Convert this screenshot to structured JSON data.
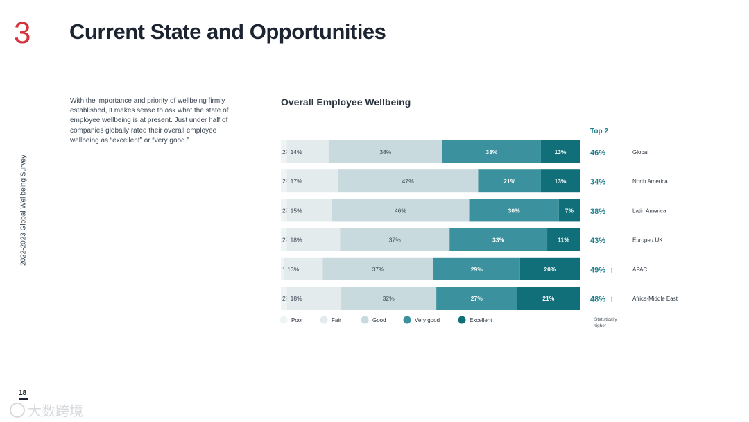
{
  "page": {
    "section_number": "3",
    "title": "Current State and Opportunities",
    "side_label": "2022-2023 Global Wellbeing Survey",
    "intro": "With the importance and priority of wellbeing firmly established, it makes sense to ask what the state of employee wellbeing is at present. Just under half of companies globally rated their overall employee wellbeing as “excellent” or “very good.”",
    "page_number": "18",
    "watermark": "大数跨境"
  },
  "chart_data": {
    "type": "bar",
    "orientation": "horizontal",
    "stacked": true,
    "title": "Overall Employee Wellbeing",
    "categories": [
      "Global",
      "North America",
      "Latin America",
      "Europe / UK",
      "APAC",
      "Africa-Middle East"
    ],
    "series": [
      {
        "name": "Poor",
        "color": "#eef3f4",
        "values": [
          2,
          2,
          2,
          2,
          1,
          2
        ],
        "labels": [
          "2%",
          "2%",
          "2%",
          "2%",
          "1%",
          "2%"
        ]
      },
      {
        "name": "Fair",
        "color": "#e3ebed",
        "values": [
          14,
          17,
          15,
          18,
          13,
          18
        ],
        "labels": [
          "14%",
          "17%",
          "15%",
          "18%",
          "13%",
          "18%"
        ]
      },
      {
        "name": "Good",
        "color": "#c9dade",
        "values": [
          38,
          47,
          46,
          37,
          37,
          32
        ],
        "labels": [
          "38%",
          "47%",
          "46%",
          "37%",
          "37%",
          "32%"
        ]
      },
      {
        "name": "Very good",
        "color": "#3b929e",
        "values": [
          33,
          21,
          30,
          33,
          29,
          27
        ],
        "labels": [
          "33%",
          "21%",
          "30%",
          "33%",
          "29%",
          "27%"
        ]
      },
      {
        "name": "Excellent",
        "color": "#106f79",
        "values": [
          13,
          13,
          7,
          11,
          20,
          21
        ],
        "labels": [
          "13%",
          "13%",
          "7%",
          "11%",
          "20%",
          "21%"
        ]
      }
    ],
    "top2_header": "Top 2",
    "top2_values": [
      "46%",
      "34%",
      "38%",
      "43%",
      "49%",
      "48%"
    ],
    "top2_significant": [
      false,
      false,
      false,
      false,
      true,
      true
    ],
    "significance_arrow": "↑",
    "significance_note": "↑ Statistically higher",
    "significance_note_lines": [
      "↑ Statistically",
      "higher"
    ]
  }
}
